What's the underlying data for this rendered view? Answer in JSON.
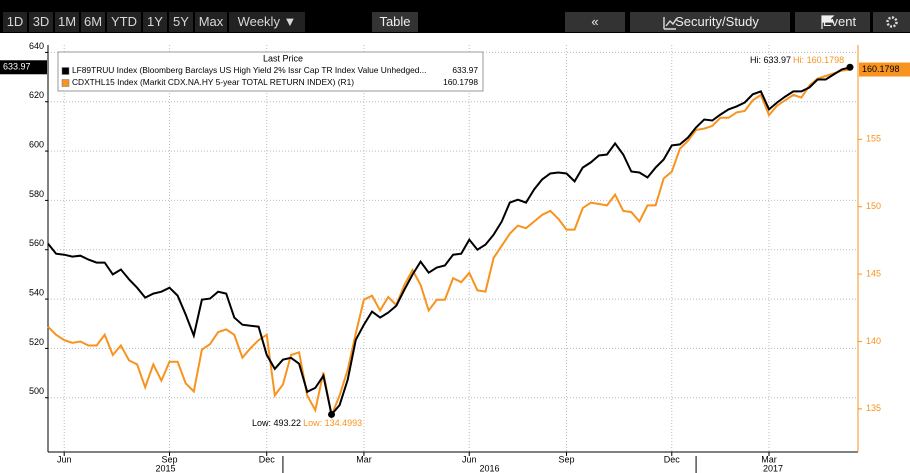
{
  "toolbar": {
    "left": [
      "1D",
      "3D",
      "1M",
      "6M",
      "YTD",
      "1Y",
      "5Y",
      "Max",
      "Weekly ▼"
    ],
    "table": "Table",
    "right": [
      "«",
      "Security/Study",
      "Event"
    ]
  },
  "chart_data": {
    "type": "line",
    "legend_title": "Last Price",
    "categories": [
      null,
      null,
      "Jun",
      null,
      null,
      null,
      null,
      null,
      null,
      null,
      null,
      null,
      null,
      null,
      null,
      "Sep",
      null,
      null,
      null,
      null,
      null,
      null,
      null,
      null,
      null,
      null,
      null,
      "Dec",
      null,
      null,
      null,
      null,
      null,
      null,
      null,
      null,
      null,
      null,
      null,
      "Mar",
      null,
      null,
      null,
      null,
      null,
      null,
      null,
      null,
      null,
      null,
      null,
      null,
      "Jun",
      null,
      null,
      null,
      null,
      null,
      null,
      null,
      null,
      null,
      null,
      null,
      "Sep",
      null,
      null,
      null,
      null,
      null,
      null,
      null,
      null,
      null,
      null,
      null,
      null,
      "Dec",
      null,
      null,
      null,
      null,
      null,
      null,
      null,
      null,
      null,
      null,
      null,
      "Mar",
      null,
      null,
      null,
      null,
      null,
      null,
      null,
      null,
      null,
      null
    ],
    "years": [
      {
        "label": "2015",
        "start": 0,
        "end": 29
      },
      {
        "label": "2016",
        "start": 29,
        "end": 80
      },
      {
        "label": "2017",
        "start": 80,
        "end": 99
      }
    ],
    "series": [
      {
        "name": "LF89TRUU Index (Bloomberg Barclays US High Yield 2% Issr Cap TR Index Value Unhedged...",
        "color": "#000000",
        "axis": "y",
        "values": [
          562.5,
          558.4,
          558,
          557.2,
          557.6,
          556,
          554.8,
          554.8,
          550,
          552,
          548,
          544.6,
          540.6,
          542.2,
          543,
          544.6,
          541.4,
          533.7,
          525.2,
          539.8,
          540.2,
          543,
          542.2,
          532.5,
          529.6,
          529.2,
          528.8,
          517.4,
          511.7,
          515.4,
          516.2,
          513.8,
          502.4,
          504,
          508.9,
          493.22,
          497,
          507.3,
          523.5,
          529.6,
          534.9,
          532.5,
          534.5,
          537.3,
          543.8,
          549.9,
          555.2,
          550.7,
          552.8,
          553.6,
          558,
          558.4,
          564.1,
          560,
          562.1,
          566.1,
          571.4,
          579.1,
          580.3,
          579.1,
          584.4,
          588.5,
          590.9,
          591.3,
          590.9,
          587.7,
          593.3,
          595.4,
          598.2,
          598.6,
          603.1,
          598.6,
          591.7,
          591.3,
          589.3,
          593.3,
          596.6,
          602.3,
          602.7,
          605.5,
          609.6,
          612.8,
          612.4,
          614.8,
          616.9,
          618.1,
          619.7,
          623,
          624.2,
          616.9,
          619.7,
          622.1,
          624.2,
          624.2,
          625.8,
          629,
          629,
          631.1,
          633.1,
          633.97
        ]
      },
      {
        "name": "CDXTHL15 Index (Markit CDX.NA.HY 5-year TOTAL RETURN INDEX) (R1)",
        "color": "#f7931e",
        "axis": "y2",
        "values": [
          141.1,
          140.5,
          140.1,
          139.9,
          140,
          139.7,
          139.7,
          140.5,
          139,
          139.7,
          138.6,
          138.3,
          136.6,
          138.3,
          137.1,
          138.5,
          138.5,
          136.9,
          136.3,
          139.4,
          139.8,
          140.7,
          140.9,
          140.5,
          138.8,
          139.5,
          140.1,
          140.5,
          136,
          136.8,
          139,
          139.2,
          136,
          134.9,
          137.7,
          134.4993,
          136,
          137.9,
          140.6,
          143.1,
          143.4,
          142.3,
          143.3,
          142.7,
          144.2,
          145.3,
          144.2,
          142.3,
          143.1,
          143.1,
          144.7,
          144.4,
          145.1,
          143.8,
          143.7,
          146.2,
          147.1,
          148,
          148.6,
          148.4,
          148.9,
          149.4,
          149.7,
          149.1,
          148.3,
          148.3,
          149.9,
          150.3,
          150.2,
          150.1,
          150.9,
          149.7,
          149.6,
          148.9,
          150.1,
          150.1,
          152.1,
          152.6,
          154.3,
          154.9,
          155.7,
          155.8,
          156,
          156.6,
          156.6,
          157,
          157.1,
          157.9,
          158.3,
          156.8,
          157.5,
          157.9,
          158.3,
          158.1,
          159,
          159.5,
          159.7,
          159.9,
          160.1,
          160.1798
        ]
      }
    ],
    "ylim": [
      478,
      643
    ],
    "yticks": [
      500,
      520,
      540,
      560,
      580,
      600,
      620,
      640
    ],
    "y2lim": [
      131.8,
      162
    ],
    "y2ticks": [
      135,
      140,
      145,
      150,
      155
    ],
    "grid": true,
    "annotations": {
      "high": "Hi:",
      "low": "Low:"
    }
  }
}
